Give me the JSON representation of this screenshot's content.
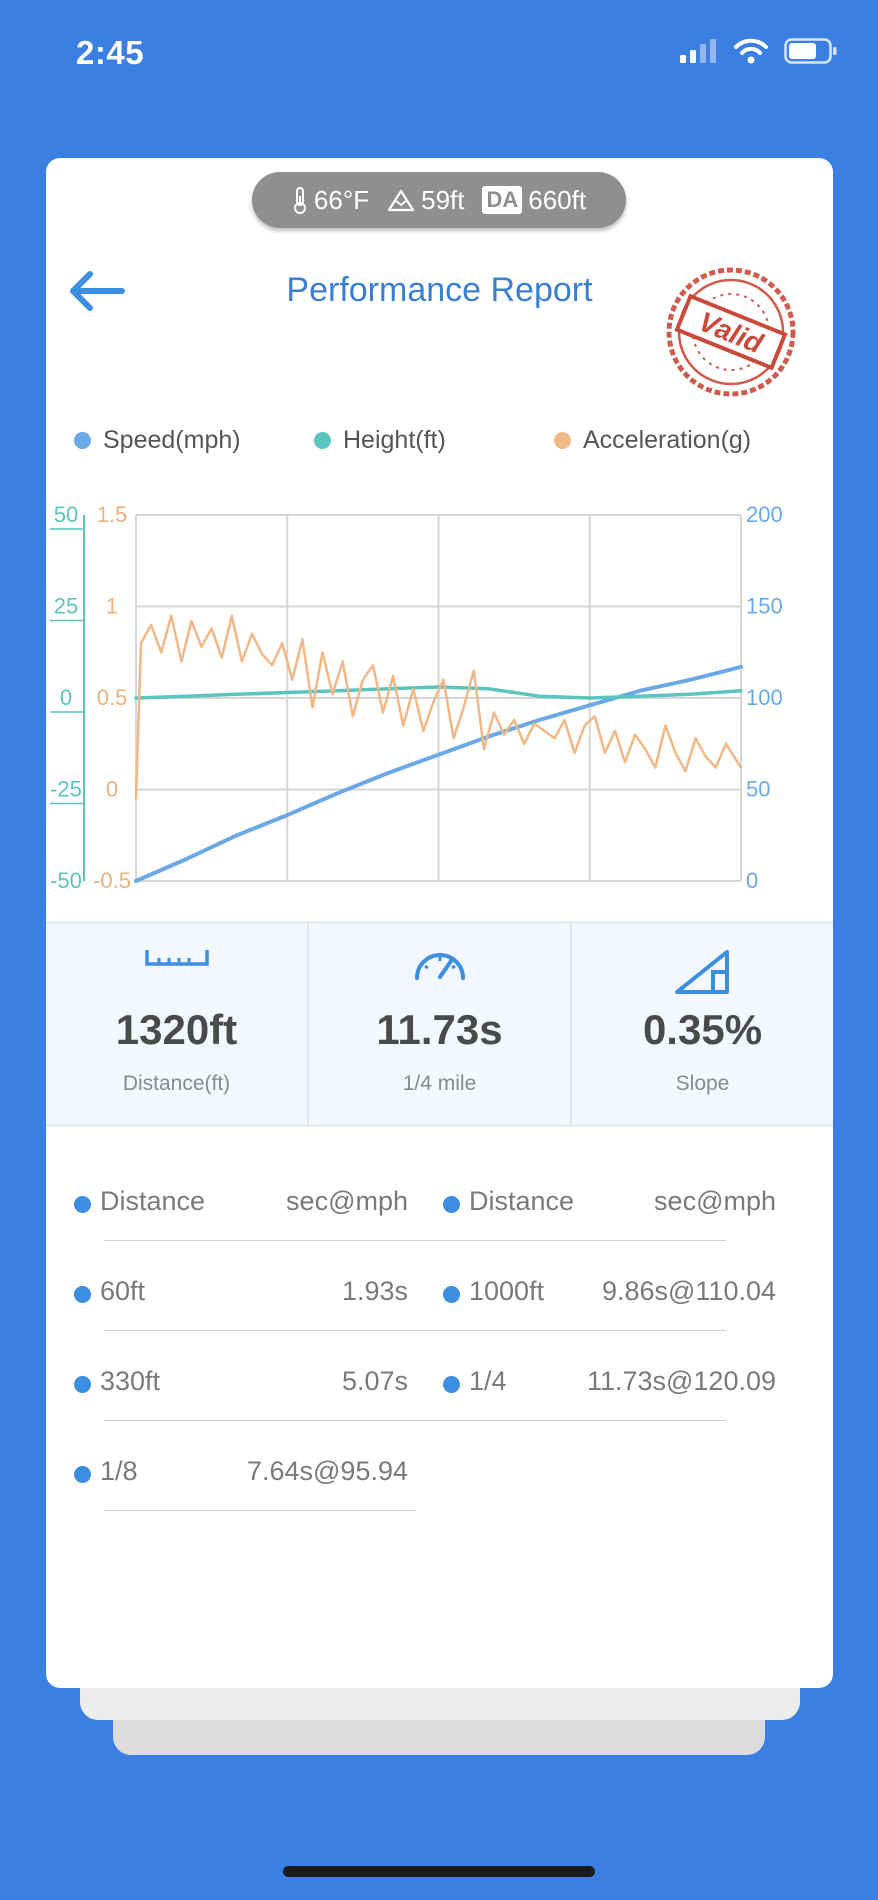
{
  "status_bar": {
    "time": "2:45"
  },
  "environment": {
    "temperature": "66°F",
    "altitude": "59ft",
    "da_label": "DA",
    "density_altitude": "660ft"
  },
  "header": {
    "title": "Performance Report",
    "stamp": "Valid"
  },
  "legend": [
    {
      "label": "Speed(mph)",
      "color": "#6aa8e6"
    },
    {
      "label": "Height(ft)",
      "color": "#5cc4bf"
    },
    {
      "label": "Acceleration(g)",
      "color": "#efb886"
    }
  ],
  "chart_data": {
    "type": "line",
    "axes": {
      "height_ticks": [
        "50",
        "25",
        "0",
        "-25",
        "-50"
      ],
      "height_range": [
        -50,
        50
      ],
      "accel_ticks": [
        "1.5",
        "1",
        "0.5",
        "0",
        "-0.5"
      ],
      "accel_range": [
        -0.5,
        1.5
      ],
      "speed_ticks": [
        "200",
        "150",
        "100",
        "50",
        "0"
      ],
      "speed_range": [
        0,
        200
      ],
      "x_range": [
        0,
        12
      ],
      "grid": true
    },
    "series": [
      {
        "name": "Speed(mph)",
        "axis": "right",
        "color": "#6aa8e6",
        "x": [
          0,
          1,
          2,
          3,
          4,
          5,
          6,
          7,
          8,
          9,
          10,
          11,
          12
        ],
        "y": [
          0,
          12,
          25,
          36,
          48,
          59,
          69,
          79,
          88,
          96,
          104,
          110,
          117
        ]
      },
      {
        "name": "Height(ft)",
        "axis": "left",
        "color": "#5cc4bf",
        "x": [
          0,
          1,
          2,
          3,
          4,
          5,
          6,
          7,
          8,
          9,
          10,
          11,
          12
        ],
        "y": [
          0,
          0.5,
          1,
          1.5,
          2,
          2.5,
          3,
          2.5,
          0.5,
          0,
          0.5,
          1,
          2
        ]
      },
      {
        "name": "Acceleration(g)",
        "axis": "left2",
        "color": "#efb886",
        "x": [
          0,
          0.1,
          0.3,
          0.5,
          0.7,
          0.9,
          1.1,
          1.3,
          1.5,
          1.7,
          1.9,
          2.1,
          2.3,
          2.5,
          2.7,
          2.9,
          3.1,
          3.3,
          3.5,
          3.7,
          3.9,
          4.1,
          4.3,
          4.5,
          4.7,
          4.9,
          5.1,
          5.3,
          5.5,
          5.7,
          5.9,
          6.1,
          6.3,
          6.5,
          6.7,
          6.9,
          7.1,
          7.3,
          7.5,
          7.7,
          7.9,
          8.1,
          8.3,
          8.5,
          8.7,
          8.9,
          9.1,
          9.3,
          9.5,
          9.7,
          9.9,
          10.1,
          10.3,
          10.5,
          10.7,
          10.9,
          11.1,
          11.3,
          11.5,
          11.7,
          12
        ],
        "y": [
          -0.05,
          0.8,
          0.9,
          0.75,
          0.95,
          0.7,
          0.92,
          0.78,
          0.88,
          0.72,
          0.95,
          0.7,
          0.85,
          0.74,
          0.68,
          0.8,
          0.6,
          0.82,
          0.45,
          0.75,
          0.52,
          0.7,
          0.4,
          0.6,
          0.68,
          0.42,
          0.62,
          0.35,
          0.55,
          0.32,
          0.48,
          0.6,
          0.28,
          0.45,
          0.65,
          0.22,
          0.42,
          0.3,
          0.38,
          0.25,
          0.36,
          0.32,
          0.28,
          0.38,
          0.2,
          0.35,
          0.4,
          0.2,
          0.32,
          0.15,
          0.3,
          0.22,
          0.12,
          0.35,
          0.2,
          0.1,
          0.28,
          0.18,
          0.12,
          0.25,
          0.12
        ]
      }
    ]
  },
  "stats": [
    {
      "icon": "ruler-icon",
      "value": "1320ft",
      "label": "Distance(ft)"
    },
    {
      "icon": "speedometer-icon",
      "value": "11.73s",
      "label": "1/4 mile"
    },
    {
      "icon": "slope-icon",
      "value": "0.35%",
      "label": "Slope"
    }
  ],
  "splits": {
    "header": {
      "name": "Distance",
      "time": "sec@mph"
    },
    "left": [
      {
        "name": "60ft",
        "time": "1.93s"
      },
      {
        "name": "330ft",
        "time": "5.07s"
      },
      {
        "name": "1/8",
        "time": "7.64s@95.94"
      }
    ],
    "right": [
      {
        "name": "1000ft",
        "time": "9.86s@110.04"
      },
      {
        "name": "1/4",
        "time": "11.73s@120.09"
      }
    ]
  },
  "colors": {
    "background": "#3a7fe1",
    "accent": "#3a7fd0",
    "dot": "#3b8ee0",
    "stamp": "#c94a3a"
  }
}
